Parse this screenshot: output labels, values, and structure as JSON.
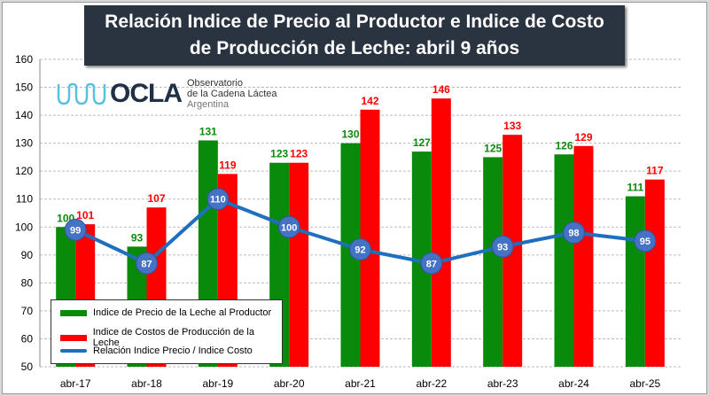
{
  "title": "Relación Indice de Precio al Productor e Indice de Costo de Producción de Leche:  abril 9 años",
  "title_line1": "Relación Indice de Precio al Productor e Indice de Costo",
  "title_line2": "de Producción de Leche:  abril 9 años",
  "logo": {
    "name": "OCLA",
    "line1": "Observatorio",
    "line2": "de la Cadena Láctea",
    "line3": "Argentina"
  },
  "chart_data": {
    "type": "bar",
    "categories": [
      "abr-17",
      "abr-18",
      "abr-19",
      "abr-20",
      "abr-21",
      "abr-22",
      "abr-23",
      "abr-24",
      "abr-25"
    ],
    "series": [
      {
        "name": "Indice de Precio de la Leche al Productor",
        "type": "bar",
        "color": "#0a8a0a",
        "values": [
          100,
          93,
          131,
          123,
          130,
          127,
          125,
          126,
          111
        ]
      },
      {
        "name": "Indice de Costos de Producción de la Leche",
        "type": "bar",
        "color": "#ff0000",
        "values": [
          101,
          107,
          119,
          123,
          142,
          146,
          133,
          129,
          117
        ]
      },
      {
        "name": "Relación Indice Precio / Indice Costo",
        "type": "line",
        "color": "#1f6fbf",
        "values": [
          99,
          87,
          110,
          100,
          92,
          87,
          93,
          98,
          95
        ]
      }
    ],
    "ylim": [
      50,
      160
    ],
    "yticks": [
      50,
      60,
      70,
      80,
      90,
      100,
      110,
      120,
      130,
      140,
      150,
      160
    ],
    "grid": true,
    "legend_position": "bottom-left"
  }
}
